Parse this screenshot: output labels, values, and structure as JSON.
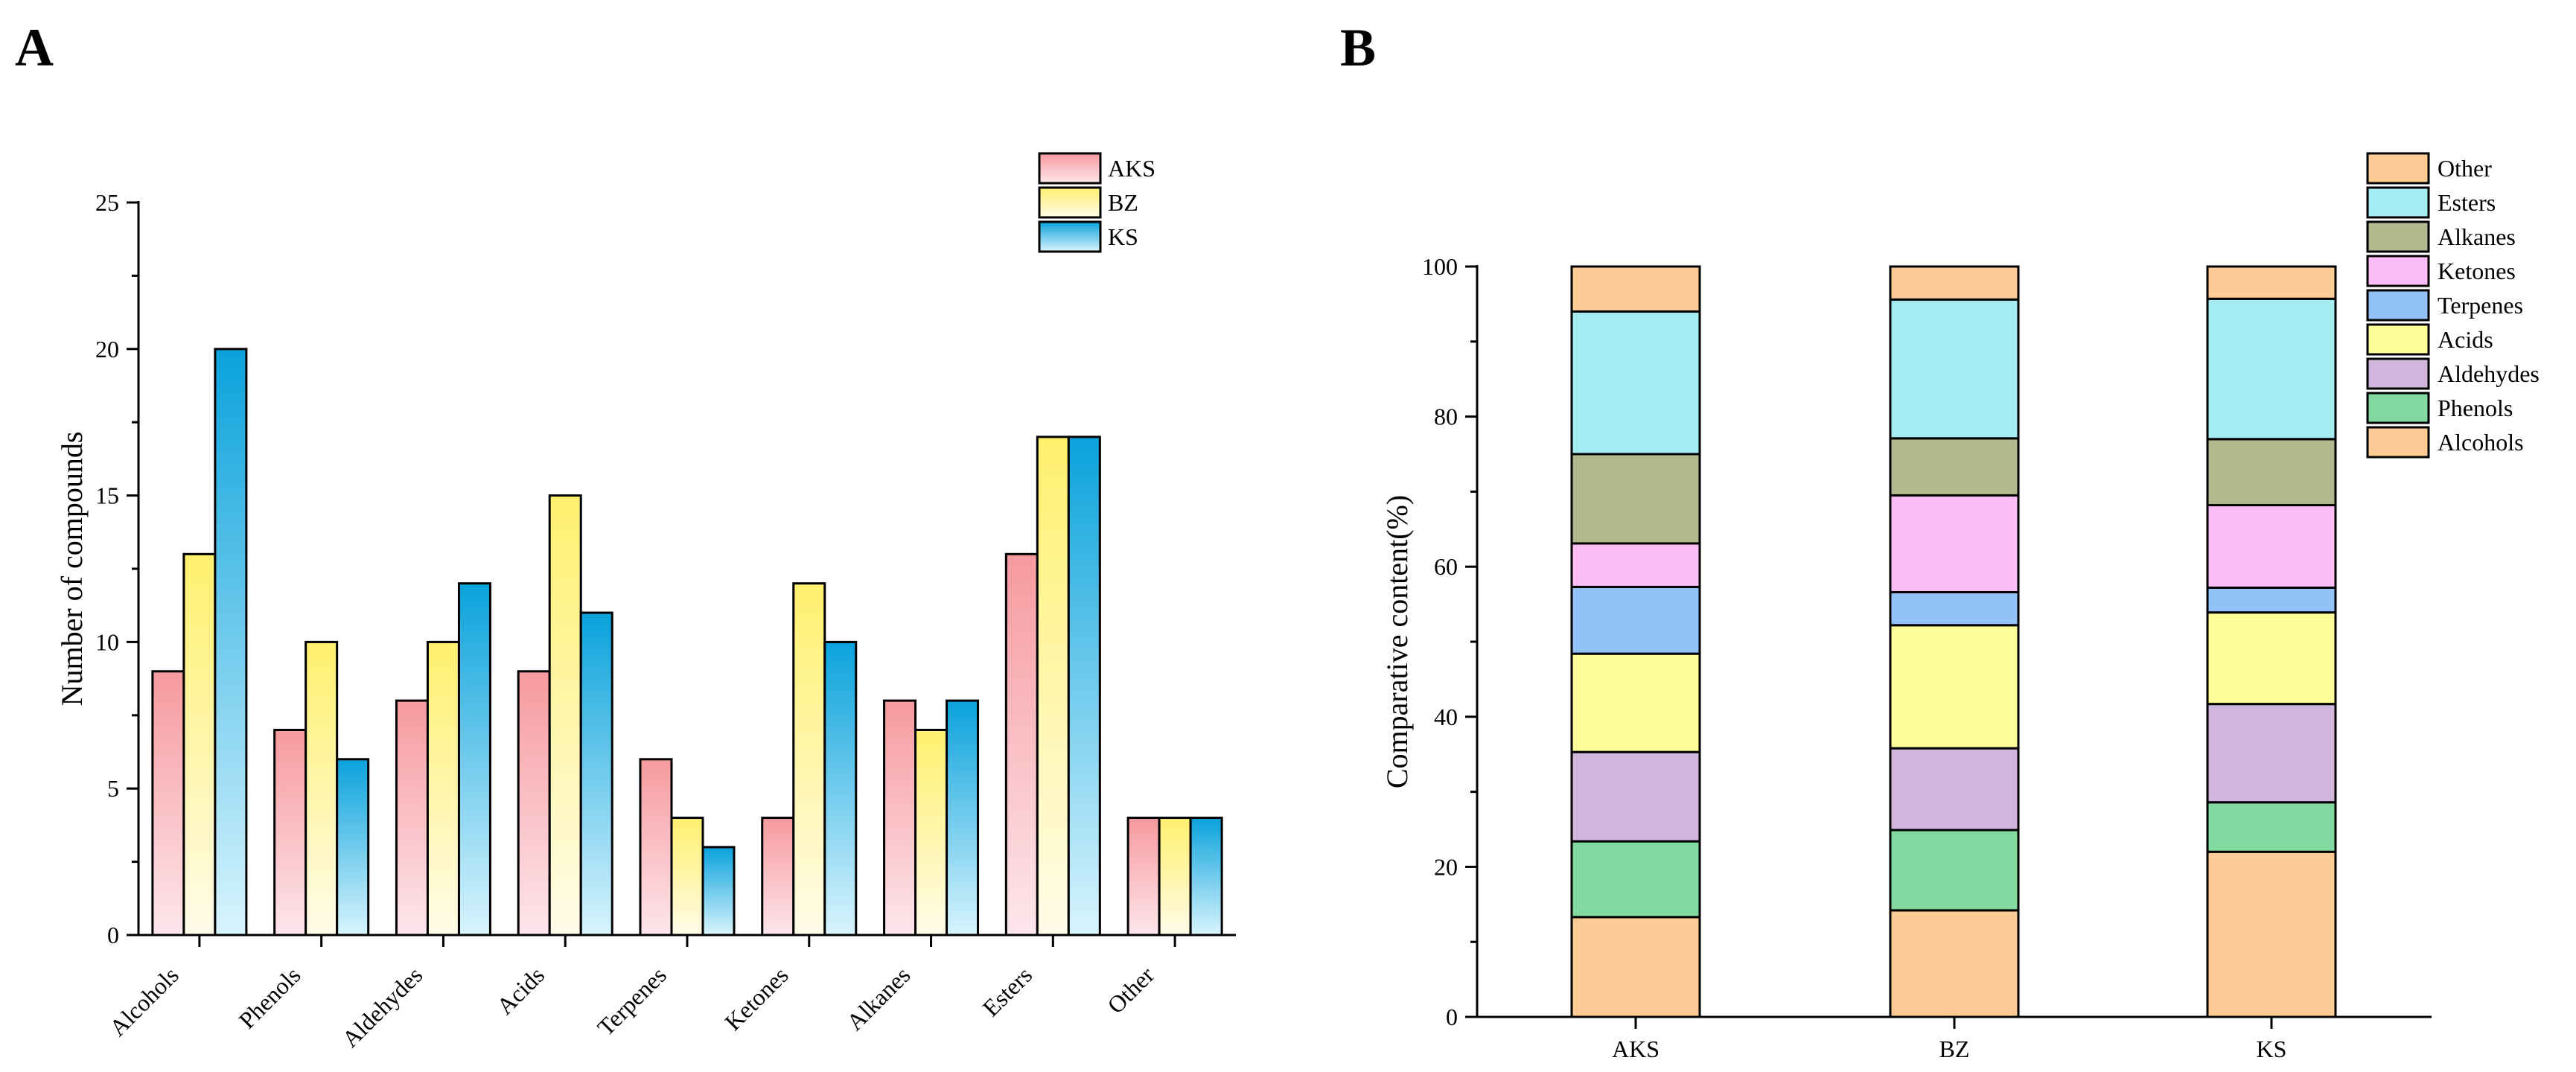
{
  "panels": {
    "a": "A",
    "b": "B"
  },
  "colors": {
    "AKS_top": "#f69a9e",
    "AKS_bottom": "#fde6ec",
    "BZ_top": "#fff06e",
    "BZ_bottom": "#fffbe8",
    "KS_top": "#0aa2dc",
    "KS_bottom": "#d8f4fd",
    "Other": "#fdcc96",
    "Esters": "#a4ebf2",
    "Alkanes": "#b3b98e",
    "Ketones": "#fcbcf6",
    "Terpenes": "#92c2f8",
    "Acids": "#fffd98",
    "Aldehydes": "#d0b6dc",
    "Phenols": "#82daa0",
    "Alcohols": "#fdcc96"
  },
  "chart_data": [
    {
      "type": "bar",
      "title": "",
      "xlabel": "",
      "ylabel": "Number of compounds",
      "ylim": [
        0,
        25
      ],
      "yticks": [
        "0",
        "5",
        "10",
        "15",
        "20",
        "25"
      ],
      "categories": [
        "Alcohols",
        "Phenols",
        "Aldehydes",
        "Acids",
        "Terpenes",
        "Ketones",
        "Alkanes",
        "Esters",
        "Other"
      ],
      "legend_position": "top-right",
      "series": [
        {
          "name": "AKS",
          "values": [
            9,
            7,
            8,
            9,
            6,
            4,
            8,
            13,
            4
          ]
        },
        {
          "name": "BZ",
          "values": [
            13,
            10,
            10,
            15,
            4,
            12,
            7,
            17,
            4
          ]
        },
        {
          "name": "KS",
          "values": [
            20,
            6,
            12,
            11,
            3,
            10,
            8,
            17,
            4
          ]
        }
      ]
    },
    {
      "type": "bar",
      "stacked": true,
      "title": "",
      "xlabel": "",
      "ylabel": "Comparative content(%)",
      "ylim": [
        0,
        100
      ],
      "yticks": [
        "0",
        "20",
        "40",
        "60",
        "80",
        "100"
      ],
      "categories": [
        "AKS",
        "BZ",
        "KS"
      ],
      "legend_position": "top-right",
      "legend_order": [
        "Other",
        "Esters",
        "Alkanes",
        "Ketones",
        "Terpenes",
        "Acids",
        "Aldehydes",
        "Phenols",
        "Alcohols"
      ],
      "series": [
        {
          "name": "Alcohols",
          "values": [
            13.3,
            14.2,
            22.0
          ]
        },
        {
          "name": "Phenols",
          "values": [
            10.1,
            10.7,
            6.6
          ]
        },
        {
          "name": "Aldehydes",
          "values": [
            11.9,
            10.9,
            13.1
          ]
        },
        {
          "name": "Acids",
          "values": [
            13.1,
            16.4,
            12.2
          ]
        },
        {
          "name": "Terpenes",
          "values": [
            8.9,
            4.4,
            3.3
          ]
        },
        {
          "name": "Ketones",
          "values": [
            5.8,
            12.9,
            11.0
          ]
        },
        {
          "name": "Alkanes",
          "values": [
            11.9,
            7.6,
            8.8
          ]
        },
        {
          "name": "Esters",
          "values": [
            19.0,
            18.5,
            18.7
          ]
        },
        {
          "name": "Other",
          "values": [
            6.0,
            4.4,
            4.3
          ]
        }
      ]
    }
  ]
}
